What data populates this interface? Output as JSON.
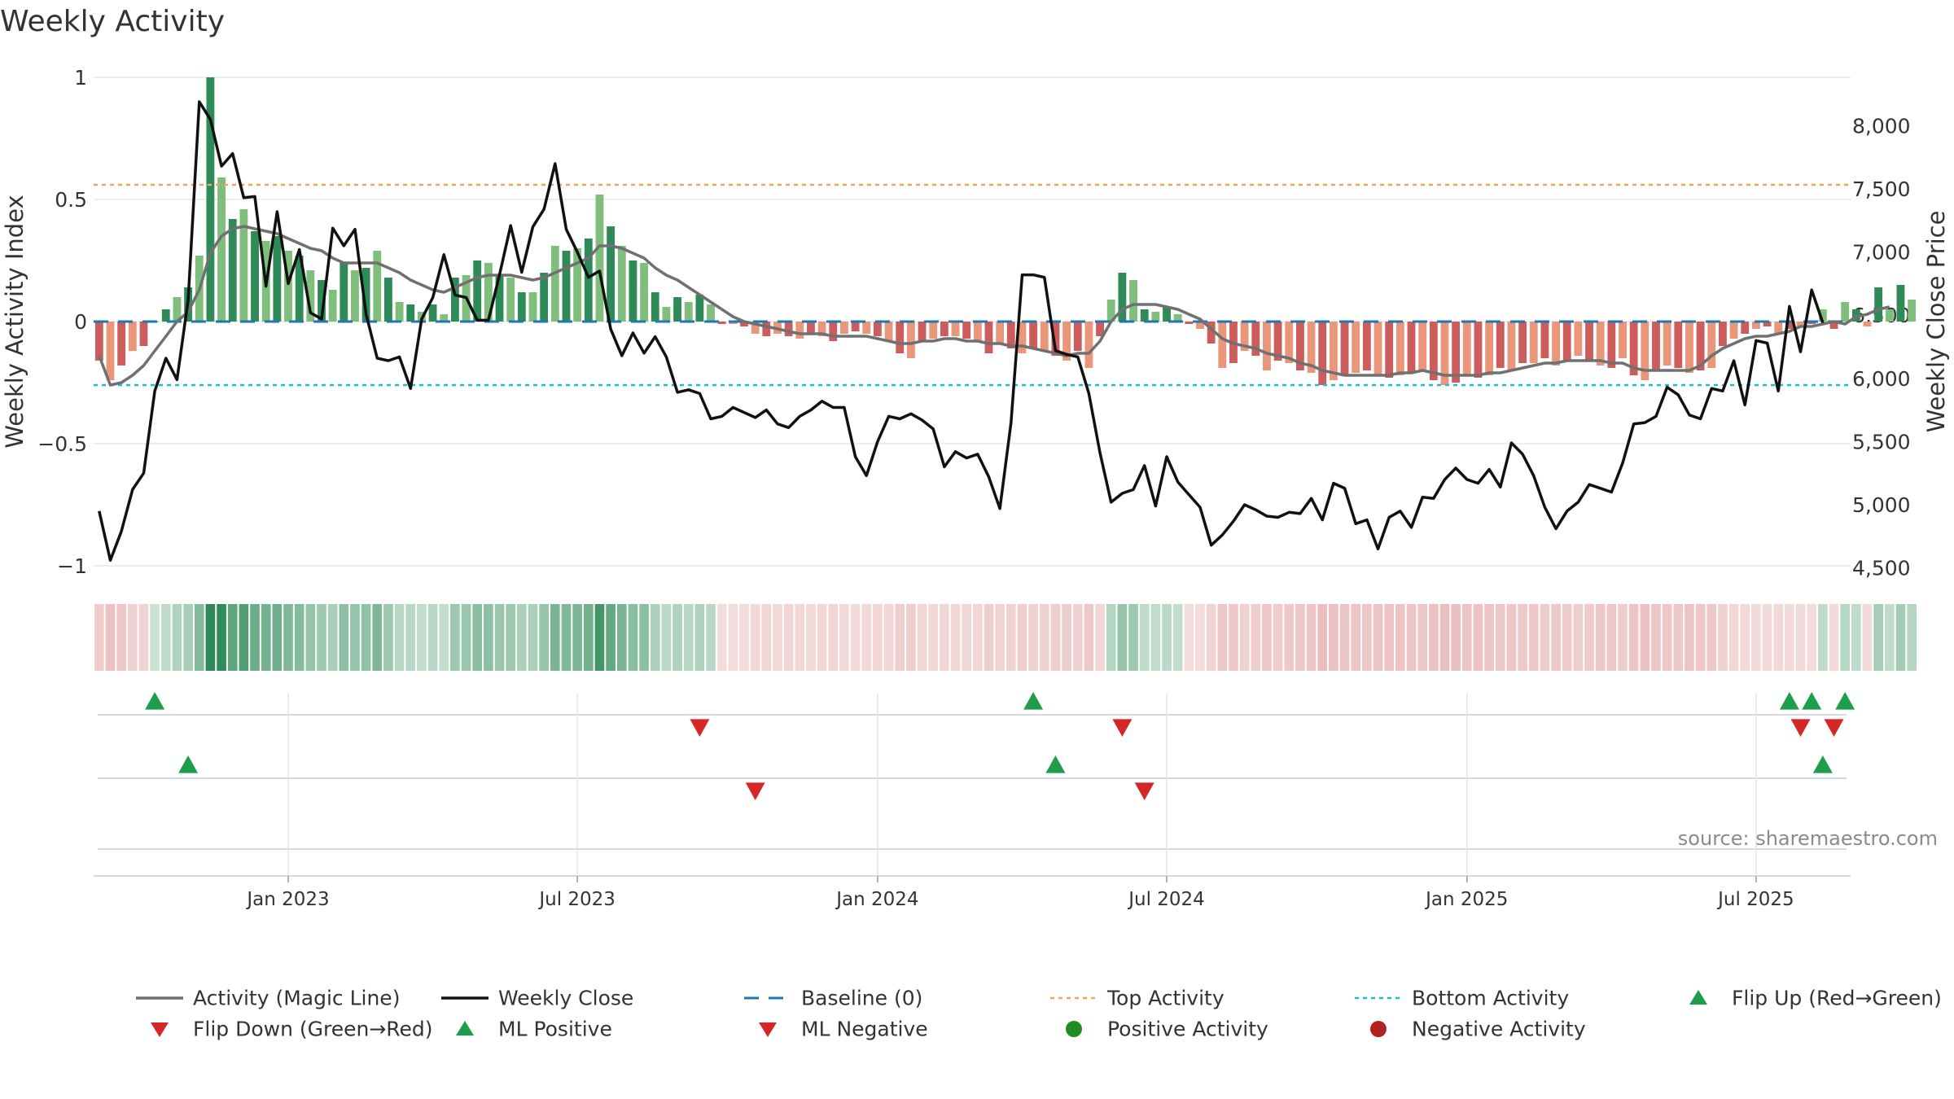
{
  "title": "Weekly Activity",
  "source": "source: sharemaestro.com",
  "colors": {
    "pos_dark": "#2e8b57",
    "pos_light": "#7fbf7b",
    "neg_dark": "#cd5c5c",
    "neg_light": "#e9967a",
    "close": "#111111",
    "magic": "#707070",
    "baseline": "#1f77b4",
    "top": "#f4a460",
    "bottom": "#17becf",
    "flip_up": "#1e9e4a",
    "flip_down": "#d62728",
    "neg_dot": "#b22222"
  },
  "chart_data": {
    "type": "bar+line",
    "title": "Weekly Activity",
    "ylabel_left": "Weekly Activity Index",
    "ylabel_right": "Weekly Close Price",
    "left_ticks": [
      1,
      0.5,
      0,
      -0.5,
      -1
    ],
    "left_tick_labels": [
      "1",
      "0.5",
      "0",
      "−0.5",
      "−1"
    ],
    "left_ylim": [
      -1.05,
      1.05
    ],
    "right_ticks": [
      8000,
      7500,
      7000,
      6500,
      6000,
      5500,
      5000,
      4500
    ],
    "right_tick_labels": [
      "8,000",
      "7,500",
      "7,000",
      "6,500",
      "6,000",
      "5,500",
      "5,000",
      "4,500"
    ],
    "right_ylim": [
      4420,
      8480
    ],
    "x_ticks": [
      {
        "label": "Jan 2023",
        "week": 17
      },
      {
        "label": "Jul 2023",
        "week": 43
      },
      {
        "label": "Jan 2024",
        "week": 70
      },
      {
        "label": "Jul 2024",
        "week": 96
      },
      {
        "label": "Jan 2025",
        "week": 123
      },
      {
        "label": "Jul 2025",
        "week": 149
      }
    ],
    "x_range": [
      -0.5,
      157.5
    ],
    "top_activity": 0.56,
    "bottom_activity": -0.26,
    "baseline": 0,
    "activity": [
      -0.16,
      -0.24,
      -0.18,
      -0.12,
      -0.1,
      0,
      0.05,
      0.1,
      0.14,
      0.27,
      1.0,
      0.59,
      0.42,
      0.46,
      0.37,
      0.33,
      0.35,
      0.29,
      0.27,
      0.21,
      0.17,
      0.13,
      0.24,
      0.21,
      0.22,
      0.29,
      0.18,
      0.08,
      0.07,
      0.04,
      0.07,
      0.03,
      0.18,
      0.19,
      0.25,
      0.24,
      0.19,
      0.18,
      0.12,
      0.12,
      0.2,
      0.31,
      0.29,
      0.3,
      0.34,
      0.52,
      0.39,
      0.31,
      0.25,
      0.24,
      0.12,
      0.06,
      0.1,
      0.08,
      0.11,
      0.07,
      -0.01,
      -0.01,
      -0.02,
      -0.05,
      -0.06,
      -0.05,
      -0.06,
      -0.07,
      -0.05,
      -0.06,
      -0.08,
      -0.05,
      -0.04,
      -0.05,
      -0.06,
      -0.08,
      -0.13,
      -0.15,
      -0.08,
      -0.07,
      -0.06,
      -0.06,
      -0.07,
      -0.08,
      -0.13,
      -0.09,
      -0.11,
      -0.13,
      -0.11,
      -0.12,
      -0.14,
      -0.16,
      -0.12,
      -0.19,
      -0.06,
      0.09,
      0.2,
      0.17,
      0.05,
      0.04,
      0.06,
      0.03,
      -0.01,
      -0.03,
      -0.09,
      -0.19,
      -0.17,
      -0.12,
      -0.14,
      -0.2,
      -0.16,
      -0.17,
      -0.2,
      -0.21,
      -0.26,
      -0.24,
      -0.22,
      -0.21,
      -0.2,
      -0.22,
      -0.23,
      -0.22,
      -0.21,
      -0.2,
      -0.24,
      -0.26,
      -0.25,
      -0.22,
      -0.23,
      -0.22,
      -0.19,
      -0.2,
      -0.17,
      -0.17,
      -0.15,
      -0.18,
      -0.16,
      -0.14,
      -0.16,
      -0.18,
      -0.19,
      -0.15,
      -0.22,
      -0.24,
      -0.2,
      -0.18,
      -0.19,
      -0.21,
      -0.2,
      -0.19,
      -0.1,
      -0.07,
      -0.05,
      -0.03,
      -0.02,
      -0.05,
      -0.03,
      -0.02,
      -0.01,
      0.05,
      -0.03,
      0.08,
      0.05,
      -0.02,
      0.14,
      0.05,
      0.15,
      0.09
    ],
    "magic_line": [
      -0.14,
      -0.26,
      -0.25,
      -0.22,
      -0.18,
      -0.12,
      -0.06,
      0,
      0.04,
      0.13,
      0.28,
      0.35,
      0.38,
      0.39,
      0.38,
      0.37,
      0.36,
      0.34,
      0.32,
      0.3,
      0.29,
      0.26,
      0.24,
      0.24,
      0.24,
      0.24,
      0.22,
      0.2,
      0.17,
      0.15,
      0.13,
      0.12,
      0.14,
      0.16,
      0.18,
      0.19,
      0.19,
      0.19,
      0.18,
      0.17,
      0.18,
      0.2,
      0.22,
      0.24,
      0.26,
      0.31,
      0.31,
      0.3,
      0.28,
      0.26,
      0.22,
      0.19,
      0.17,
      0.14,
      0.11,
      0.08,
      0.05,
      0.02,
      0,
      -0.01,
      -0.02,
      -0.03,
      -0.04,
      -0.05,
      -0.05,
      -0.05,
      -0.06,
      -0.06,
      -0.06,
      -0.06,
      -0.07,
      -0.08,
      -0.09,
      -0.09,
      -0.08,
      -0.08,
      -0.07,
      -0.07,
      -0.08,
      -0.08,
      -0.09,
      -0.09,
      -0.1,
      -0.1,
      -0.11,
      -0.12,
      -0.13,
      -0.14,
      -0.13,
      -0.13,
      -0.08,
      0,
      0.05,
      0.07,
      0.07,
      0.07,
      0.06,
      0.05,
      0.03,
      0.01,
      -0.03,
      -0.07,
      -0.09,
      -0.1,
      -0.11,
      -0.13,
      -0.14,
      -0.15,
      -0.17,
      -0.18,
      -0.2,
      -0.21,
      -0.22,
      -0.22,
      -0.22,
      -0.22,
      -0.22,
      -0.21,
      -0.21,
      -0.2,
      -0.21,
      -0.22,
      -0.22,
      -0.22,
      -0.22,
      -0.21,
      -0.21,
      -0.2,
      -0.19,
      -0.18,
      -0.17,
      -0.17,
      -0.16,
      -0.16,
      -0.16,
      -0.16,
      -0.17,
      -0.17,
      -0.19,
      -0.2,
      -0.2,
      -0.2,
      -0.2,
      -0.2,
      -0.18,
      -0.14,
      -0.11,
      -0.09,
      -0.07,
      -0.06,
      -0.06,
      -0.05,
      -0.04,
      -0.02,
      -0.02,
      -0.01,
      0,
      -0.01,
      0.02,
      0.03,
      0.05,
      0.06
    ],
    "weekly_close": [
      4950,
      4560,
      4790,
      5120,
      5250,
      5900,
      6160,
      5990,
      6620,
      8190,
      8050,
      7680,
      7780,
      7430,
      7440,
      6730,
      7320,
      6750,
      7020,
      6520,
      6470,
      7190,
      7050,
      7180,
      6510,
      6160,
      6140,
      6170,
      5920,
      6470,
      6640,
      6980,
      6660,
      6640,
      6460,
      6460,
      6820,
      7210,
      6840,
      7200,
      7340,
      7700,
      7180,
      7000,
      6800,
      6850,
      6390,
      6180,
      6360,
      6200,
      6330,
      6170,
      5890,
      5910,
      5880,
      5680,
      5700,
      5770,
      5730,
      5690,
      5750,
      5640,
      5610,
      5700,
      5750,
      5820,
      5770,
      5770,
      5380,
      5230,
      5500,
      5700,
      5680,
      5720,
      5670,
      5600,
      5300,
      5420,
      5370,
      5400,
      5220,
      4970,
      5650,
      6820,
      6820,
      6800,
      6220,
      6190,
      6170,
      5880,
      5410,
      5020,
      5090,
      5120,
      5310,
      4990,
      5380,
      5180,
      5080,
      4980,
      4680,
      4760,
      4870,
      5000,
      4960,
      4910,
      4900,
      4940,
      4930,
      5050,
      4880,
      5170,
      5130,
      4850,
      4880,
      4650,
      4900,
      4950,
      4820,
      5060,
      5050,
      5200,
      5290,
      5200,
      5170,
      5280,
      5140,
      5490,
      5400,
      5230,
      4980,
      4810,
      4950,
      5020,
      5160,
      5130,
      5100,
      5330,
      5640,
      5650,
      5700,
      5930,
      5870,
      5710,
      5680,
      5920,
      5900,
      6140,
      5790,
      6300,
      6280,
      5900,
      6570,
      6210,
      6700,
      6440
    ],
    "markers": {
      "flip_up": [
        5,
        84,
        152,
        154,
        157
      ],
      "flip_down": [
        54,
        92,
        153,
        156
      ],
      "ml_positive": [
        8,
        86,
        155
      ],
      "ml_negative": [
        59,
        94
      ]
    }
  },
  "legend": [
    {
      "key": "magic",
      "label": "Activity (Magic Line)"
    },
    {
      "key": "close",
      "label": "Weekly Close"
    },
    {
      "key": "baseline",
      "label": "Baseline (0)"
    },
    {
      "key": "top",
      "label": "Top Activity"
    },
    {
      "key": "bottom",
      "label": "Bottom Activity"
    },
    {
      "key": "flip_up",
      "label": "Flip Up (Red→Green)"
    },
    {
      "key": "flip_down",
      "label": "Flip Down (Green→Red)"
    },
    {
      "key": "ml_positive",
      "label": "ML Positive"
    },
    {
      "key": "ml_negative",
      "label": "ML Negative"
    },
    {
      "key": "positive",
      "label": "Positive Activity"
    },
    {
      "key": "negative",
      "label": "Negative Activity"
    }
  ]
}
